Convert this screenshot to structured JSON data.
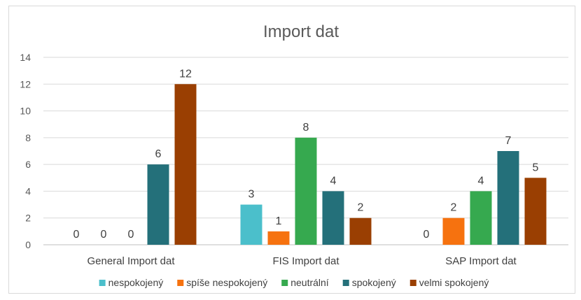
{
  "chart_data": {
    "type": "bar",
    "title": "Import dat",
    "categories": [
      "General Import dat",
      "FIS Import dat",
      "SAP Import dat"
    ],
    "series": [
      {
        "name": "nespokojený",
        "color": "#4bbfcb",
        "values": [
          0,
          3,
          0
        ]
      },
      {
        "name": "spíše nespokojený",
        "color": "#f6720f",
        "values": [
          0,
          1,
          2
        ]
      },
      {
        "name": "neutrální",
        "color": "#36a94f",
        "values": [
          0,
          8,
          4
        ]
      },
      {
        "name": "spokojený",
        "color": "#24707a",
        "values": [
          6,
          4,
          7
        ]
      },
      {
        "name": "velmi spokojený",
        "color": "#9a3f02",
        "values": [
          12,
          2,
          5
        ]
      }
    ],
    "ylim": [
      0,
      14
    ],
    "yticks": [
      0,
      2,
      4,
      6,
      8,
      10,
      12,
      14
    ],
    "grid": true,
    "legend_position": "bottom"
  }
}
